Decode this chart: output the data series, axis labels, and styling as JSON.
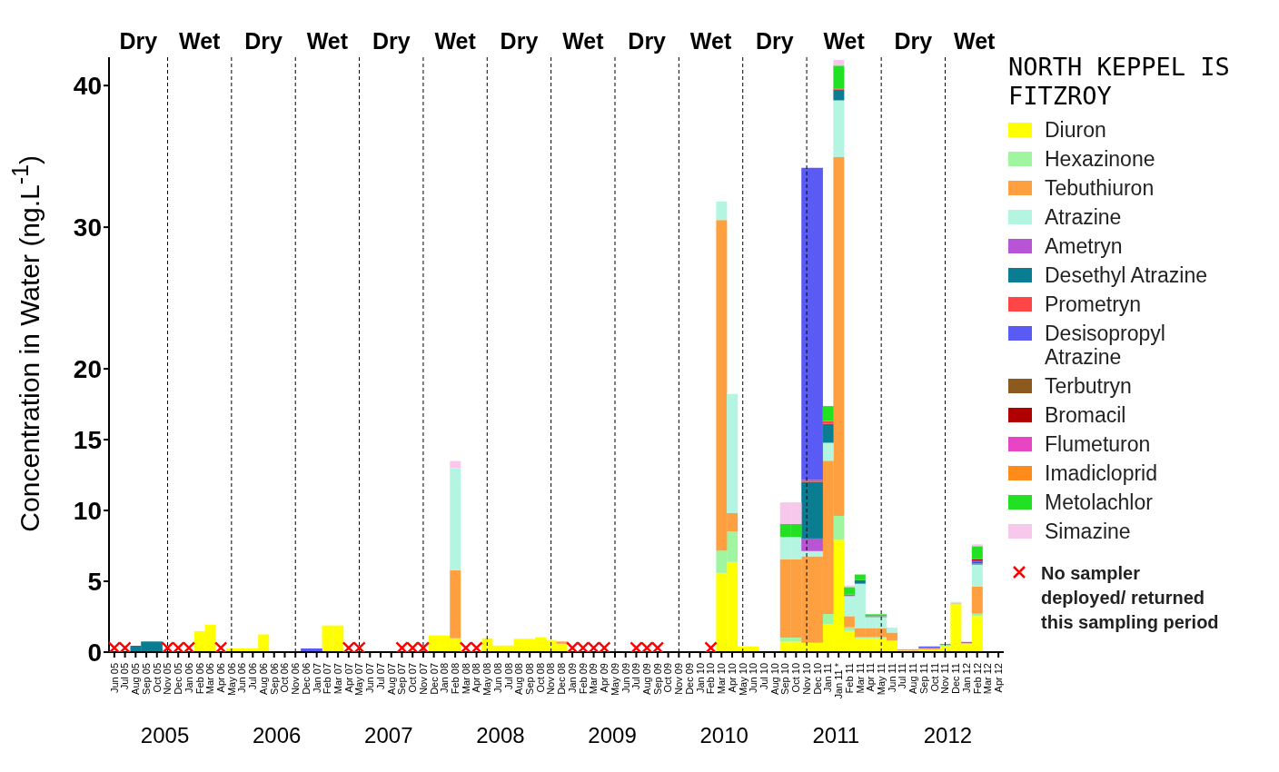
{
  "chart_data": {
    "type": "bar",
    "stacked": true,
    "ylabel": "Concentration in Water (ng.L$^{-1}$)",
    "legend_title": "NORTH KEPPEL IS FITZROY",
    "legend": "right",
    "categories": [
      "Jun 05",
      "Jul 05",
      "Aug 05",
      "Sep 05",
      "Oct 05",
      "Nov 05",
      "Dec 05",
      "Jan 06",
      "Feb 06",
      "Mar 06",
      "Apr 06",
      "May 06",
      "Jun 06",
      "Jul 06",
      "Aug 06",
      "Sep 06",
      "Oct 06",
      "Nov 06",
      "Dec 06",
      "Jan 07",
      "Feb 07",
      "Mar 07",
      "Apr 07",
      "May 07",
      "Jun 07",
      "Jul 07",
      "Aug 07",
      "Sep 07",
      "Oct 07",
      "Nov 07",
      "Dec 07",
      "Jan 08",
      "Feb 08",
      "Mar 08",
      "Apr 08",
      "May 08",
      "Jun 08",
      "Jul 08",
      "Aug 08",
      "Sep 08",
      "Oct 08",
      "Nov 08",
      "Dec 08",
      "Jan 09",
      "Feb 09",
      "Mar 09",
      "Apr 09",
      "May 09",
      "Jun 09",
      "Jul 09",
      "Aug 09",
      "Sep 09",
      "Oct 09",
      "Nov 09",
      "Dec 09",
      "Jan 10",
      "Feb 10",
      "Mar 10",
      "Apr 10",
      "May 10",
      "Jun 10",
      "Jul 10",
      "Aug 10",
      "Sep 10",
      "Oct 10",
      "Nov 10",
      "Dec 10",
      "Jan 11",
      "Jan 11 *",
      "Feb 11",
      "Mar 11",
      "Apr 11",
      "May 11",
      "Jun 11",
      "Jul 11",
      "Aug 11",
      "Sep 11",
      "Oct 11",
      "Nov 11",
      "Dec 11",
      "Jan 12",
      "Feb 12",
      "Mar 12",
      "Apr 12"
    ],
    "ylim": [
      0,
      42
    ],
    "yticks": [
      0,
      5,
      10,
      15,
      20,
      30,
      40
    ],
    "series": [
      {
        "name": "Diuron",
        "color": "#ffff00",
        "values": [
          null,
          null,
          null,
          null,
          null,
          null,
          null,
          null,
          1.48,
          1.93,
          null,
          0.26,
          0.26,
          0.26,
          1.25,
          null,
          null,
          null,
          null,
          null,
          1.88,
          1.88,
          null,
          null,
          null,
          null,
          null,
          null,
          null,
          null,
          1.18,
          1.18,
          0.98,
          null,
          null,
          0.98,
          0.46,
          0.46,
          0.94,
          0.94,
          1.05,
          0.85,
          0.59,
          null,
          null,
          null,
          null,
          null,
          null,
          null,
          null,
          null,
          null,
          null,
          null,
          null,
          null,
          5.59,
          6.36,
          0.41,
          0.41,
          null,
          null,
          0.74,
          0.74,
          0.65,
          0.65,
          1.97,
          7.93,
          1.49,
          0.98,
          0.98,
          0.98,
          0.82,
          0.1,
          0.1,
          0.2,
          0.2,
          0.41,
          3.39,
          0.62,
          2.55,
          null,
          null
        ]
      },
      {
        "name": "Hexazinone",
        "color": "#a0f5a0",
        "values": [
          null,
          null,
          null,
          null,
          null,
          null,
          null,
          null,
          null,
          null,
          null,
          null,
          null,
          null,
          null,
          null,
          null,
          null,
          null,
          null,
          null,
          null,
          null,
          null,
          null,
          null,
          null,
          null,
          null,
          null,
          null,
          null,
          null,
          null,
          null,
          null,
          null,
          null,
          null,
          null,
          null,
          null,
          null,
          null,
          null,
          null,
          null,
          null,
          null,
          null,
          null,
          null,
          null,
          null,
          null,
          null,
          null,
          1.58,
          2.14,
          null,
          null,
          null,
          null,
          0.28,
          0.28,
          null,
          null,
          0.73,
          1.69,
          0.26,
          0.07,
          0.07,
          0.07,
          null,
          null,
          null,
          null,
          null,
          0.09,
          null,
          null,
          0.16,
          null,
          null
        ]
      },
      {
        "name": "Tebuthiuron",
        "color": "#ffa040",
        "values": [
          null,
          null,
          null,
          null,
          null,
          null,
          null,
          null,
          null,
          null,
          null,
          null,
          null,
          null,
          null,
          null,
          null,
          null,
          null,
          null,
          null,
          null,
          null,
          null,
          null,
          null,
          null,
          null,
          null,
          null,
          null,
          null,
          4.8,
          null,
          null,
          null,
          null,
          null,
          null,
          null,
          null,
          null,
          0.16,
          null,
          null,
          null,
          null,
          null,
          null,
          null,
          null,
          null,
          null,
          null,
          null,
          null,
          null,
          23.33,
          1.31,
          null,
          null,
          null,
          null,
          5.53,
          5.53,
          6.11,
          6.11,
          10.81,
          25.32,
          0.79,
          0.65,
          0.65,
          0.65,
          0.56,
          0.1,
          0.1,
          0.08,
          0.08,
          null,
          0.05,
          null,
          1.91,
          null,
          null
        ]
      },
      {
        "name": "Atrazine",
        "color": "#b4f5e1",
        "values": [
          null,
          null,
          null,
          null,
          null,
          null,
          null,
          null,
          null,
          null,
          null,
          null,
          null,
          null,
          null,
          null,
          null,
          null,
          null,
          null,
          null,
          null,
          null,
          null,
          null,
          null,
          null,
          null,
          null,
          null,
          null,
          null,
          7.21,
          null,
          null,
          null,
          null,
          null,
          null,
          null,
          null,
          null,
          null,
          null,
          null,
          null,
          null,
          null,
          null,
          null,
          null,
          null,
          null,
          null,
          null,
          null,
          null,
          1.3,
          8.41,
          null,
          null,
          null,
          null,
          1.58,
          1.58,
          0.37,
          0.37,
          1.27,
          4.02,
          1.41,
          3.13,
          0.77,
          0.77,
          0.35,
          null,
          null,
          null,
          null,
          null,
          0.11,
          null,
          1.55,
          null,
          null
        ]
      },
      {
        "name": "Ametryn",
        "color": "#b755d6",
        "values": [
          null,
          null,
          null,
          null,
          null,
          null,
          null,
          null,
          null,
          null,
          null,
          null,
          null,
          null,
          null,
          null,
          null,
          null,
          null,
          null,
          null,
          null,
          null,
          null,
          null,
          null,
          null,
          null,
          null,
          null,
          null,
          null,
          null,
          null,
          null,
          null,
          null,
          null,
          null,
          null,
          null,
          null,
          null,
          null,
          null,
          null,
          null,
          null,
          null,
          null,
          null,
          null,
          null,
          null,
          null,
          null,
          null,
          null,
          null,
          null,
          null,
          null,
          null,
          null,
          null,
          0.89,
          0.89,
          null,
          null,
          0.11,
          null,
          0.07,
          0.07,
          null,
          null,
          null,
          null,
          null,
          null,
          null,
          0.1,
          0.08,
          null,
          null
        ]
      },
      {
        "name": "Desethyl Atrazine",
        "color": "#0b7d93",
        "values": [
          null,
          null,
          0.45,
          0.75,
          0.75,
          null,
          null,
          null,
          null,
          null,
          null,
          null,
          null,
          null,
          null,
          null,
          null,
          null,
          null,
          null,
          null,
          null,
          null,
          null,
          null,
          null,
          null,
          null,
          null,
          null,
          null,
          null,
          null,
          null,
          null,
          null,
          null,
          null,
          null,
          null,
          null,
          null,
          null,
          null,
          null,
          null,
          null,
          null,
          null,
          null,
          null,
          null,
          null,
          null,
          null,
          null,
          null,
          null,
          null,
          null,
          null,
          null,
          null,
          null,
          null,
          4.0,
          4.0,
          1.33,
          0.74,
          null,
          0.25,
          null,
          null,
          null,
          null,
          null,
          null,
          null,
          null,
          null,
          null,
          0.1,
          null,
          null
        ]
      },
      {
        "name": "Prometryn",
        "color": "#ff4545",
        "values": [
          null,
          null,
          null,
          null,
          null,
          null,
          null,
          null,
          null,
          null,
          null,
          null,
          null,
          null,
          null,
          null,
          null,
          null,
          null,
          null,
          null,
          null,
          null,
          null,
          null,
          null,
          null,
          null,
          null,
          null,
          null,
          null,
          null,
          null,
          null,
          null,
          null,
          null,
          null,
          null,
          null,
          null,
          null,
          null,
          null,
          null,
          null,
          null,
          null,
          null,
          null,
          null,
          null,
          null,
          null,
          null,
          null,
          null,
          null,
          null,
          null,
          null,
          null,
          null,
          null,
          0.13,
          0.13,
          0.2,
          0.1,
          null,
          null,
          null,
          null,
          null,
          null,
          null,
          null,
          null,
          null,
          null,
          null,
          null,
          null,
          null
        ]
      },
      {
        "name": "Desisopropyl Atrazine",
        "color": "#5a5af5",
        "values": [
          null,
          null,
          null,
          null,
          null,
          null,
          null,
          null,
          null,
          null,
          null,
          null,
          null,
          null,
          null,
          null,
          null,
          null,
          0.26,
          0.26,
          null,
          null,
          null,
          null,
          null,
          null,
          null,
          null,
          null,
          null,
          null,
          null,
          null,
          null,
          null,
          null,
          null,
          null,
          null,
          null,
          null,
          null,
          null,
          null,
          null,
          null,
          null,
          null,
          null,
          null,
          null,
          null,
          null,
          null,
          null,
          null,
          null,
          null,
          null,
          null,
          null,
          null,
          null,
          null,
          null,
          22.05,
          22.05,
          null,
          null,
          null,
          null,
          null,
          null,
          null,
          null,
          null,
          0.12,
          0.12,
          null,
          null,
          null,
          0.1,
          null,
          null
        ]
      },
      {
        "name": "Terbutryn",
        "color": "#8c5a1e",
        "values": [
          null,
          null,
          null,
          null,
          null,
          null,
          null,
          null,
          null,
          null,
          null,
          null,
          null,
          null,
          null,
          null,
          null,
          null,
          null,
          null,
          null,
          null,
          null,
          null,
          null,
          null,
          null,
          null,
          null,
          null,
          null,
          null,
          null,
          null,
          null,
          null,
          null,
          null,
          null,
          null,
          null,
          null,
          null,
          null,
          null,
          null,
          null,
          null,
          null,
          null,
          null,
          null,
          null,
          null,
          null,
          null,
          null,
          null,
          null,
          null,
          null,
          null,
          null,
          null,
          null,
          null,
          null,
          null,
          null,
          null,
          null,
          null,
          null,
          null,
          null,
          null,
          null,
          null,
          null,
          null,
          null,
          null,
          null,
          null
        ]
      },
      {
        "name": "Bromacil",
        "color": "#b00000",
        "values": [
          null,
          null,
          null,
          null,
          null,
          null,
          null,
          null,
          null,
          null,
          null,
          null,
          null,
          null,
          null,
          null,
          null,
          null,
          null,
          null,
          null,
          null,
          null,
          null,
          null,
          null,
          null,
          null,
          null,
          null,
          null,
          null,
          null,
          null,
          null,
          null,
          null,
          null,
          null,
          null,
          null,
          null,
          null,
          null,
          null,
          null,
          null,
          null,
          null,
          null,
          null,
          null,
          null,
          null,
          null,
          null,
          null,
          null,
          null,
          null,
          null,
          null,
          null,
          null,
          null,
          null,
          null,
          null,
          null,
          null,
          null,
          null,
          null,
          null,
          null,
          null,
          null,
          null,
          null,
          null,
          null,
          0.1,
          null,
          null
        ]
      },
      {
        "name": "Flumeturon",
        "color": "#e845c5",
        "values": [
          null,
          null,
          null,
          null,
          null,
          null,
          null,
          null,
          null,
          null,
          null,
          null,
          null,
          null,
          null,
          null,
          null,
          null,
          null,
          null,
          null,
          null,
          null,
          null,
          null,
          null,
          null,
          null,
          null,
          null,
          null,
          null,
          null,
          null,
          null,
          null,
          null,
          null,
          null,
          null,
          null,
          null,
          null,
          null,
          null,
          null,
          null,
          null,
          null,
          null,
          null,
          null,
          null,
          null,
          null,
          null,
          null,
          null,
          null,
          null,
          null,
          null,
          null,
          null,
          null,
          null,
          null,
          null,
          null,
          null,
          null,
          null,
          null,
          null,
          null,
          null,
          null,
          null,
          null,
          null,
          null,
          null,
          null,
          null
        ]
      },
      {
        "name": "Imadicloprid",
        "color": "#ff8c1a",
        "values": [
          null,
          null,
          null,
          null,
          null,
          null,
          null,
          null,
          null,
          null,
          null,
          null,
          null,
          null,
          null,
          null,
          null,
          null,
          null,
          null,
          null,
          null,
          null,
          null,
          null,
          null,
          null,
          null,
          null,
          null,
          null,
          null,
          null,
          null,
          null,
          null,
          null,
          null,
          null,
          null,
          null,
          null,
          null,
          null,
          null,
          null,
          null,
          null,
          null,
          null,
          null,
          null,
          null,
          null,
          null,
          null,
          null,
          null,
          null,
          null,
          null,
          null,
          null,
          null,
          null,
          null,
          null,
          null,
          null,
          null,
          null,
          null,
          null,
          null,
          null,
          null,
          null,
          null,
          null,
          null,
          null,
          null,
          null,
          null
        ]
      },
      {
        "name": "Metolachlor",
        "color": "#22e022",
        "values": [
          null,
          null,
          null,
          null,
          null,
          null,
          null,
          null,
          null,
          null,
          null,
          null,
          null,
          null,
          null,
          null,
          null,
          null,
          null,
          null,
          null,
          null,
          null,
          null,
          null,
          null,
          null,
          null,
          null,
          null,
          null,
          null,
          null,
          null,
          null,
          null,
          null,
          null,
          null,
          null,
          null,
          null,
          null,
          null,
          null,
          null,
          null,
          null,
          null,
          null,
          null,
          null,
          null,
          null,
          null,
          null,
          null,
          null,
          null,
          null,
          null,
          null,
          null,
          0.91,
          0.91,
          null,
          null,
          1.06,
          1.6,
          0.53,
          0.4,
          0.13,
          0.13,
          null,
          null,
          null,
          null,
          null,
          0.08,
          null,
          null,
          0.93,
          null,
          null
        ]
      },
      {
        "name": "Simazine",
        "color": "#f7c8ec",
        "values": [
          null,
          null,
          null,
          null,
          null,
          null,
          null,
          null,
          null,
          null,
          null,
          null,
          null,
          null,
          null,
          null,
          null,
          null,
          null,
          null,
          null,
          null,
          null,
          null,
          null,
          null,
          null,
          null,
          null,
          null,
          null,
          null,
          0.5,
          null,
          null,
          null,
          null,
          null,
          null,
          null,
          null,
          null,
          null,
          null,
          null,
          null,
          null,
          null,
          null,
          null,
          null,
          null,
          null,
          null,
          null,
          null,
          null,
          null,
          null,
          null,
          null,
          null,
          null,
          1.53,
          1.53,
          null,
          null,
          null,
          0.4,
          0.11,
          null,
          null,
          null,
          null,
          null,
          null,
          null,
          null,
          null,
          null,
          null,
          0.13,
          null,
          null
        ]
      },
      {
        "name": "No sampler deployed/ returned this sampling period",
        "type": "scatter",
        "marker": "cross",
        "color": "#ff0000",
        "values": [
          0.3,
          0.3,
          null,
          null,
          null,
          0.3,
          0.3,
          0.3,
          null,
          null,
          0.3,
          null,
          null,
          null,
          null,
          null,
          null,
          null,
          null,
          null,
          null,
          null,
          0.3,
          0.3,
          null,
          null,
          null,
          0.3,
          0.3,
          0.3,
          null,
          null,
          null,
          0.3,
          0.3,
          null,
          null,
          null,
          null,
          null,
          null,
          null,
          null,
          0.3,
          0.3,
          0.3,
          0.3,
          null,
          null,
          0.3,
          0.3,
          0.3,
          null,
          null,
          null,
          null,
          0.3,
          null,
          null,
          null,
          null,
          null,
          null,
          null,
          null,
          null,
          null,
          null,
          null,
          null,
          null,
          null,
          null,
          null,
          null,
          null,
          null,
          null,
          null,
          null,
          null,
          null,
          null,
          null
        ]
      }
    ],
    "ref_lines": [
      {
        "axis": "x",
        "value": "Nov 05",
        "line_style": "dashed"
      },
      {
        "axis": "x",
        "value": "May 06",
        "line_style": "dashed"
      },
      {
        "axis": "x",
        "value": "Nov 06",
        "line_style": "dashed"
      },
      {
        "axis": "x",
        "value": "May 07",
        "line_style": "dashed"
      },
      {
        "axis": "x",
        "value": "Nov 07",
        "line_style": "dashed"
      },
      {
        "axis": "x",
        "value": "May 08",
        "line_style": "dashed"
      },
      {
        "axis": "x",
        "value": "Nov 08",
        "line_style": "dashed"
      },
      {
        "axis": "x",
        "value": "May 09",
        "line_style": "dashed"
      },
      {
        "axis": "x",
        "value": "Nov 09",
        "line_style": "dashed"
      },
      {
        "axis": "x",
        "value": "May 10",
        "line_style": "dashed"
      },
      {
        "axis": "x",
        "value": "Nov 10",
        "line_style": "dashed"
      },
      {
        "axis": "x",
        "value": "May 11",
        "line_style": "dashed"
      },
      {
        "axis": "x",
        "value": "Nov 11",
        "line_style": "dashed"
      }
    ],
    "annotations": [
      "Dry",
      "Wet",
      "Dry",
      "Wet",
      "Dry",
      "Wet",
      "Dry",
      "Wet",
      "Dry",
      "Wet",
      "Dry",
      "Wet",
      "Dry",
      "Wet",
      "2005",
      "2006",
      "2007",
      "2008",
      "2009",
      "2010",
      "2011",
      "2012"
    ]
  }
}
